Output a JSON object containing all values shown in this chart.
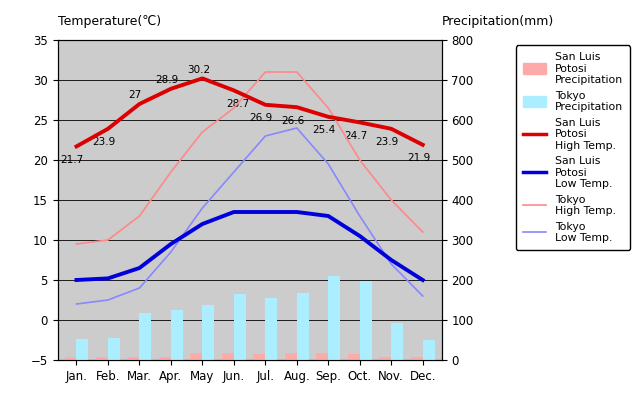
{
  "months": [
    "Jan.",
    "Feb.",
    "Mar.",
    "Apr.",
    "May",
    "Jun.",
    "Jul.",
    "Aug.",
    "Sep.",
    "Oct.",
    "Nov.",
    "Dec."
  ],
  "month_x": [
    0,
    1,
    2,
    3,
    4,
    5,
    6,
    7,
    8,
    9,
    10,
    11
  ],
  "slp_high_temp": [
    21.7,
    23.9,
    27.0,
    28.9,
    30.2,
    28.7,
    26.9,
    26.6,
    25.4,
    24.7,
    23.9,
    21.9
  ],
  "slp_low_temp": [
    5.0,
    5.2,
    6.5,
    9.5,
    12.0,
    13.5,
    13.5,
    13.5,
    13.0,
    10.5,
    7.5,
    5.0
  ],
  "tokyo_high_temp": [
    9.5,
    10.0,
    13.0,
    18.5,
    23.5,
    26.5,
    31.0,
    31.0,
    26.5,
    20.0,
    15.0,
    11.0
  ],
  "tokyo_low_temp": [
    2.0,
    2.5,
    4.0,
    8.5,
    14.0,
    18.5,
    23.0,
    24.0,
    19.5,
    13.0,
    7.0,
    3.0
  ],
  "slp_precip_mm": [
    8,
    7,
    8,
    8,
    18,
    18,
    14,
    18,
    17,
    14,
    8,
    8
  ],
  "tokyo_precip_mm": [
    52,
    56,
    117,
    125,
    137,
    165,
    154,
    168,
    210,
    197,
    92,
    51
  ],
  "slp_high_color": "#dd0000",
  "slp_low_color": "#0000dd",
  "tokyo_high_color": "#ff8888",
  "tokyo_low_color": "#8888ff",
  "slp_precip_color": "#ffaaaa",
  "tokyo_precip_color": "#aaeeff",
  "temp_ylim": [
    -5,
    35
  ],
  "precip_ylim": [
    0,
    800
  ],
  "precip_scale": 800,
  "temp_range": 40,
  "temp_min": -5,
  "title_left": "Temperature(℃)",
  "title_right": "Precipitation(mm)",
  "bg_color": "#cccccc",
  "slp_high_labels": [
    "21.7",
    "23.9",
    "27",
    "28.9",
    "30.2",
    "28.7",
    "26.9",
    "26.6",
    "25.4",
    "24.7",
    "23.9",
    "21.9"
  ],
  "label_offsets_x": [
    -3,
    -3,
    -3,
    -3,
    -3,
    3,
    -3,
    -3,
    -3,
    -3,
    -3,
    -3
  ],
  "label_offsets_y": [
    -12,
    -12,
    4,
    4,
    4,
    -12,
    -12,
    -12,
    -12,
    -12,
    -12,
    -12
  ]
}
